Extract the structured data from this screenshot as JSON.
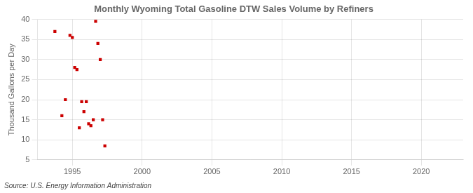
{
  "chart_data": {
    "type": "scatter",
    "title": "Monthly Wyoming Total Gasoline DTW Sales Volume by Refiners",
    "ylabel": "Thousand Gallons per Day",
    "annotations": [
      "Source: U.S. Energy Information Administration"
    ],
    "x": [
      1993.75,
      1994.25,
      1994.5,
      1994.83,
      1995.0,
      1995.17,
      1995.33,
      1995.5,
      1995.67,
      1995.83,
      1996.0,
      1996.17,
      1996.33,
      1996.5,
      1996.67,
      1996.83,
      1997.0,
      1997.17,
      1997.33
    ],
    "values": [
      37.0,
      16.0,
      20.0,
      36.0,
      35.5,
      28.0,
      27.5,
      13.0,
      19.5,
      17.0,
      19.5,
      14.0,
      13.5,
      15.0,
      39.5,
      34.0,
      30.0,
      15.0,
      8.5
    ],
    "color": "#cc0000",
    "marker": "square",
    "xlim": [
      1992.5,
      2023
    ],
    "xticks": [
      1995,
      2000,
      2005,
      2010,
      2015,
      2020
    ],
    "ylim": [
      5,
      40
    ],
    "yticks": [
      5,
      10,
      15,
      20,
      25,
      30,
      35,
      40
    ],
    "grid": true
  }
}
